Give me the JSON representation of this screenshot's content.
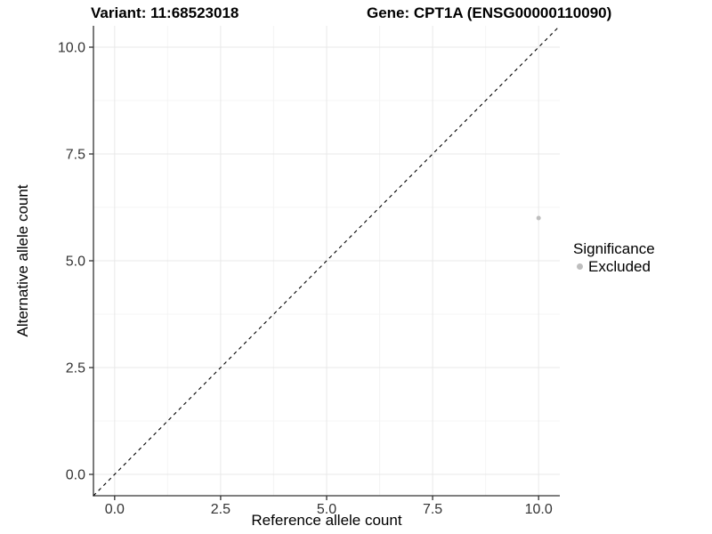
{
  "chart_data": {
    "type": "scatter",
    "titles": {
      "left": "Variant: 11:68523018",
      "right": "Gene: CPT1A (ENSG00000110090)"
    },
    "xlabel": "Reference allele count",
    "ylabel": "Alternative allele count",
    "xlim": [
      -0.5,
      10.5
    ],
    "ylim": [
      -0.5,
      10.5
    ],
    "x_ticks": [
      0.0,
      2.5,
      5.0,
      7.5,
      10.0
    ],
    "y_ticks": [
      0.0,
      2.5,
      5.0,
      7.5,
      10.0
    ],
    "x_minor_ticks": [
      1.25,
      3.75,
      6.25,
      8.75
    ],
    "y_minor_ticks": [
      1.25,
      3.75,
      6.25,
      8.75
    ],
    "grid": true,
    "legend_position": "right",
    "series": [
      {
        "name": "Excluded",
        "color": "#bebebe",
        "marker": "circle",
        "points": [
          {
            "x": 10,
            "y": 6
          }
        ]
      }
    ],
    "reference_line": {
      "slope": 1,
      "intercept": 0,
      "style": "dashed",
      "color": "#000000"
    },
    "legend": {
      "title": "Significance",
      "items": [
        {
          "label": "Excluded",
          "color": "#bebebe",
          "marker": "circle"
        }
      ]
    }
  },
  "colors": {
    "background": "#ffffff",
    "grid_major": "#e8e8e8",
    "grid_minor": "#f4f4f4",
    "axis_line": "#333333",
    "tick_mark": "#333333",
    "tick_text": "#333333",
    "title_text": "#000000",
    "point": "#bebebe"
  }
}
